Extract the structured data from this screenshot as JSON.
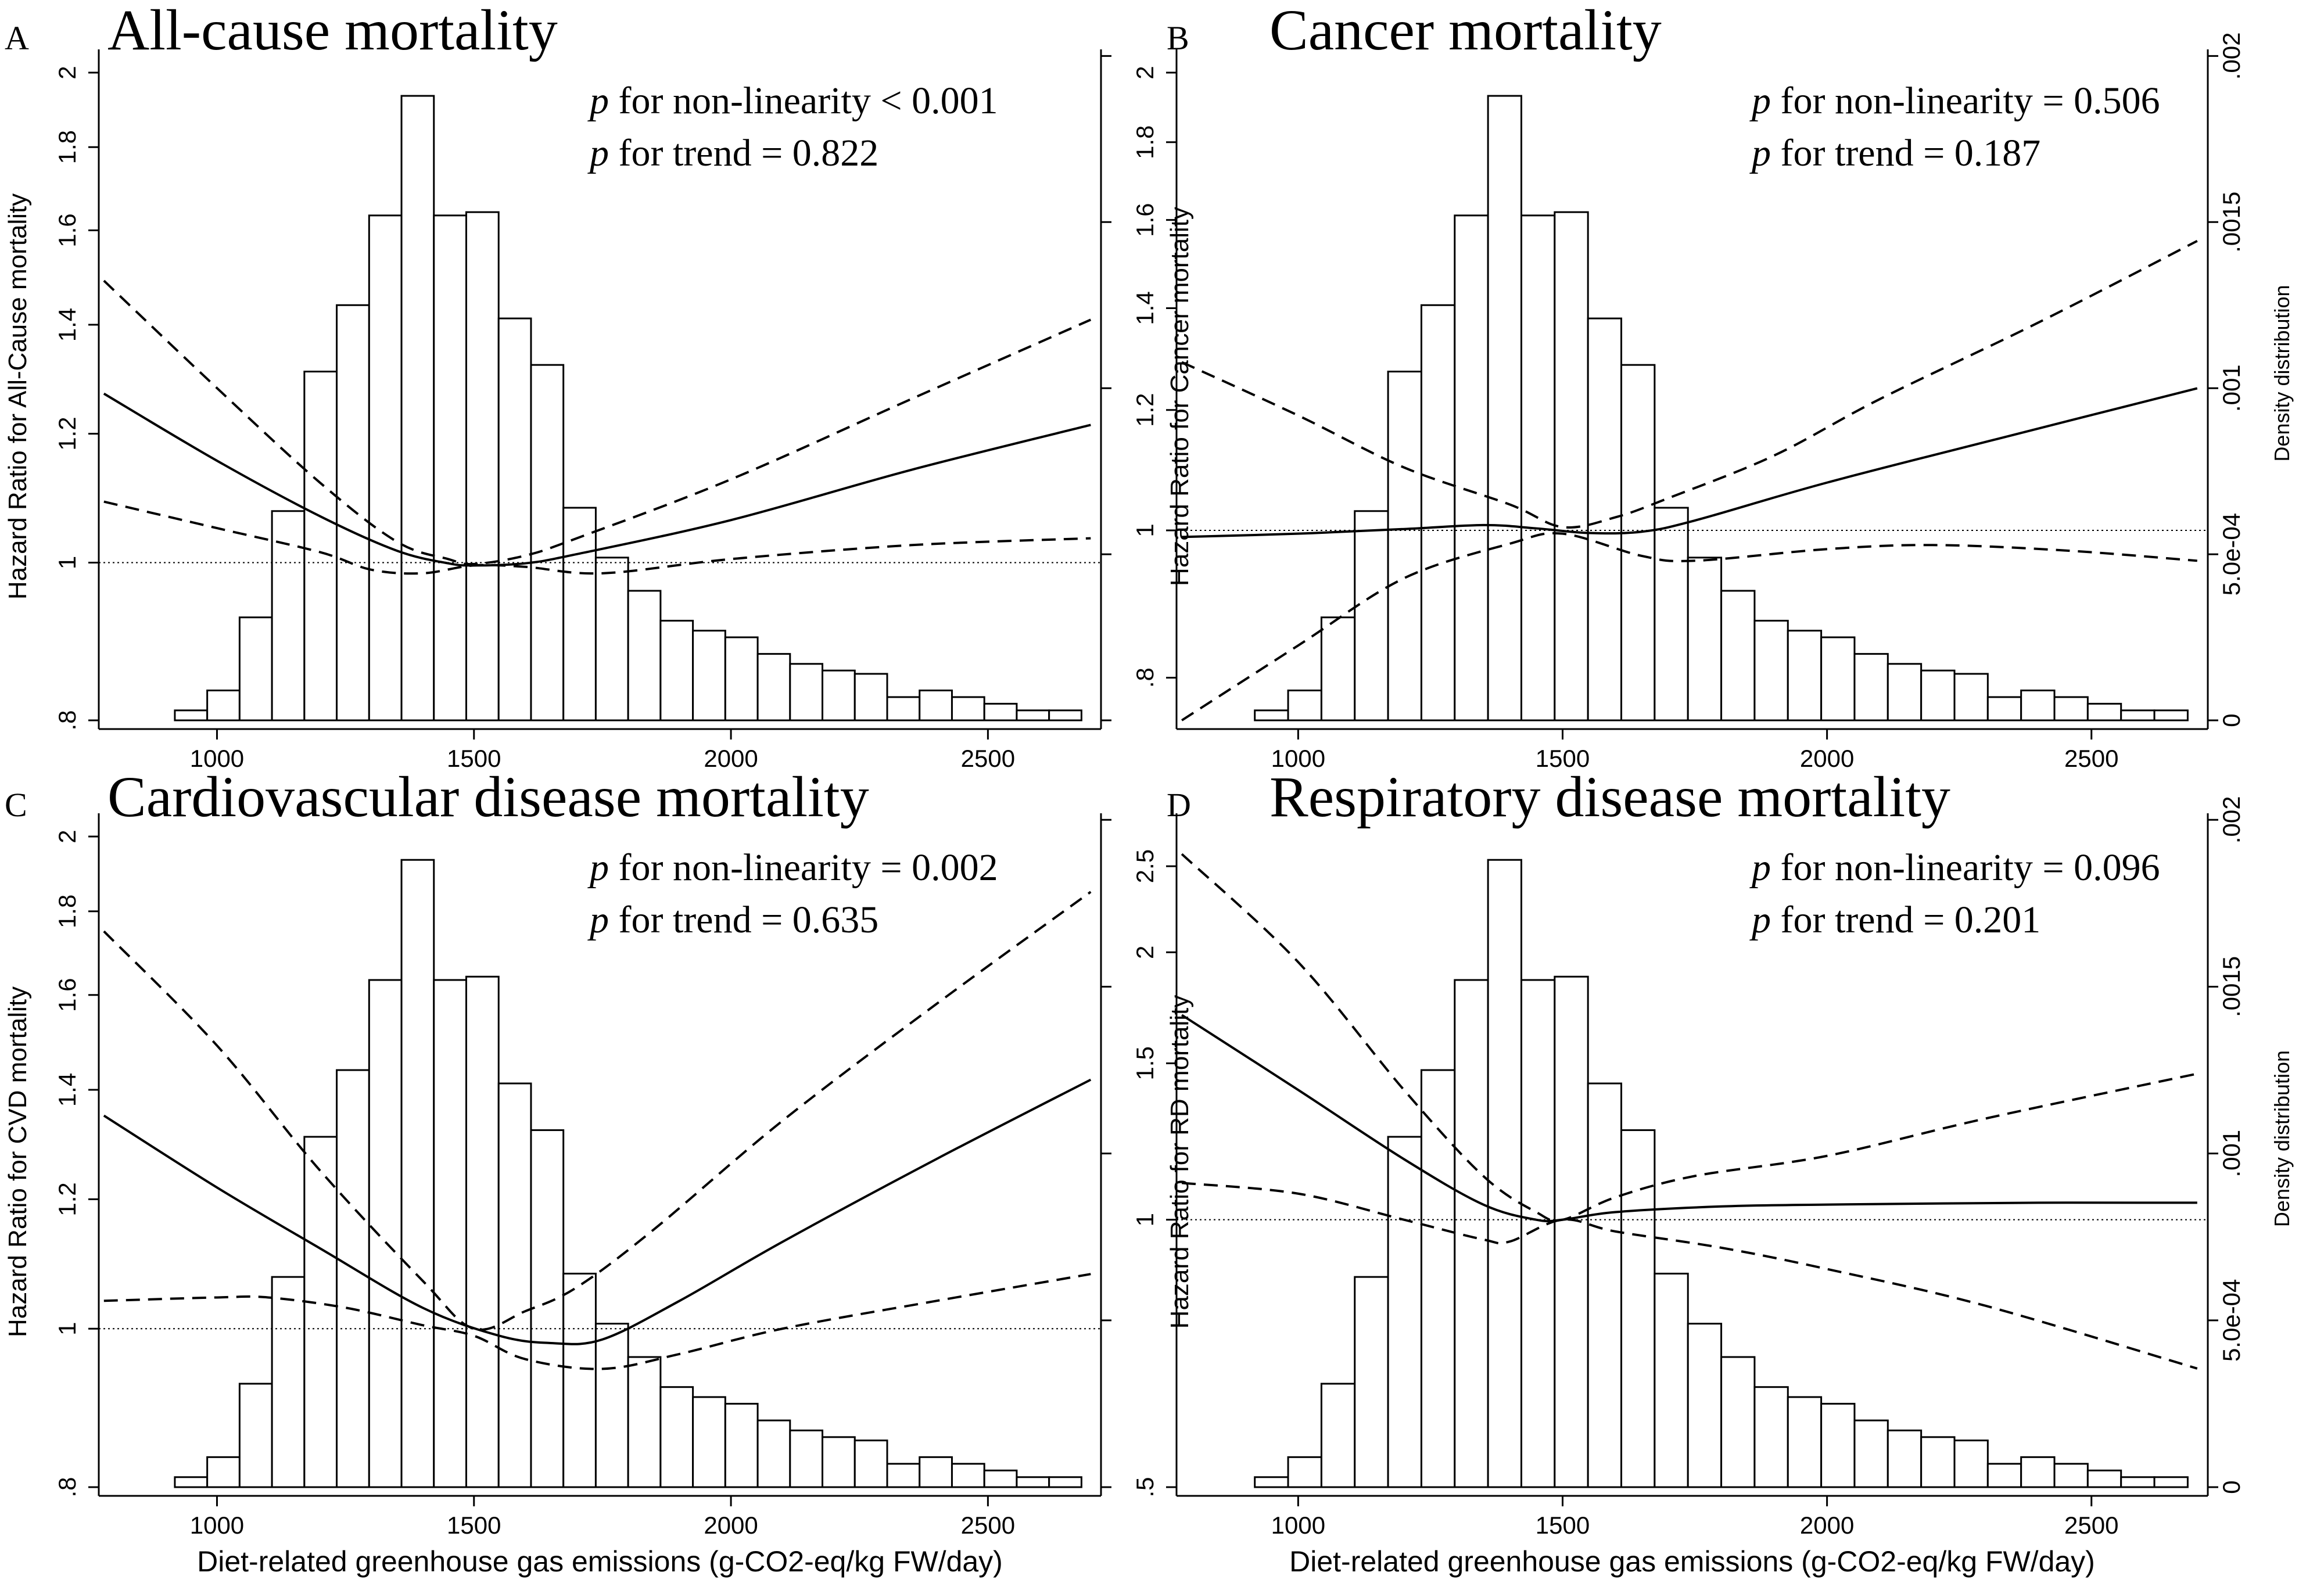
{
  "chart_data": [
    {
      "type": "line",
      "panel_label": "A",
      "title": "All-cause mortality",
      "ylabel": "Hazard Ratio for All-Cause mortality",
      "y2label": "",
      "xlabel": "",
      "annotation_p": "p",
      "annotation_nonlin": " for non-linearity < 0.001",
      "annotation_trend": " for trend = 0.822",
      "xlim": [
        770,
        2720
      ],
      "ylim": [
        0.8,
        2.0
      ],
      "ylog": true,
      "yticks": [
        0.8,
        1,
        1.2,
        1.4,
        1.6,
        1.8,
        2
      ],
      "ytick_labels": [
        ".8",
        "1",
        "1.2",
        "1.4",
        "1.6",
        "1.8",
        "2"
      ],
      "xticks": [
        1000,
        1500,
        2000,
        2500
      ],
      "xtick_labels": [
        "1000",
        "1500",
        "2000",
        "2500"
      ],
      "density_ticks": [
        0,
        0.0005,
        0.001,
        0.0015,
        0.002
      ],
      "density_tick_labels": [
        "",
        "",
        "",
        "",
        ""
      ],
      "reference_hr": 1,
      "series": [
        {
          "name": "HR",
          "style": "solid",
          "x": [
            780,
            1000,
            1200,
            1350,
            1450,
            1500,
            1600,
            1700,
            2000,
            2350,
            2700
          ],
          "y": [
            1.27,
            1.155,
            1.068,
            1.017,
            0.999,
            0.996,
            0.999,
            1.012,
            1.062,
            1.14,
            1.215
          ]
        },
        {
          "name": "Upper 95% CI",
          "style": "dashed",
          "x": [
            780,
            1000,
            1200,
            1350,
            1450,
            1500,
            1600,
            1700,
            2000,
            2350,
            2700
          ],
          "y": [
            1.49,
            1.28,
            1.12,
            1.03,
            1.005,
            0.998,
            1.01,
            1.035,
            1.125,
            1.26,
            1.41
          ]
        },
        {
          "name": "Lower 95% CI",
          "style": "dashed",
          "x": [
            780,
            1000,
            1200,
            1300,
            1400,
            1500,
            1600,
            1750,
            2000,
            2350,
            2700
          ],
          "y": [
            1.09,
            1.05,
            1.015,
            0.99,
            0.985,
            0.996,
            0.994,
            0.985,
            1.005,
            1.025,
            1.035
          ]
        }
      ],
      "histogram": {
        "bin_start": 855,
        "bin_width": 63,
        "density": [
          0.0,
          3e-05,
          9e-05,
          0.00031,
          0.00063,
          0.00105,
          0.00125,
          0.00152,
          0.00188,
          0.00152,
          0.00153,
          0.00121,
          0.00107,
          0.00064,
          0.00049,
          0.00039,
          0.0003,
          0.00027,
          0.00025,
          0.0002,
          0.00017,
          0.00015,
          0.00014,
          7e-05,
          9e-05,
          7e-05,
          5e-05,
          3e-05,
          3e-05
        ],
        "ymax": 0.00195
      }
    },
    {
      "type": "line",
      "panel_label": "B",
      "title": "Cancer mortality",
      "ylabel": "Hazard Ratio for Cancer mortality",
      "y2label": "Density distribution",
      "xlabel": "",
      "annotation_p": "p",
      "annotation_nonlin": " for non-linearity = 0.506",
      "annotation_trend": " for trend = 0.187",
      "xlim": [
        770,
        2720
      ],
      "ylim": [
        0.75,
        2.0
      ],
      "ylog": true,
      "yticks": [
        0.8,
        1,
        1.2,
        1.4,
        1.6,
        1.8,
        2
      ],
      "ytick_labels": [
        ".8",
        "1",
        "1.2",
        "1.4",
        "1.6",
        "1.8",
        "2"
      ],
      "xticks": [
        1000,
        1500,
        2000,
        2500
      ],
      "xtick_labels": [
        "1000",
        "1500",
        "2000",
        "2500"
      ],
      "density_ticks": [
        0,
        0.0005,
        0.001,
        0.0015,
        0.002
      ],
      "density_tick_labels": [
        "0",
        "5.0e-04",
        ".001",
        ".0015",
        ".002"
      ],
      "reference_hr": 1,
      "series": [
        {
          "name": "HR",
          "style": "solid",
          "x": [
            780,
            1000,
            1200,
            1350,
            1450,
            1550,
            1650,
            1750,
            2000,
            2350,
            2700
          ],
          "y": [
            0.99,
            0.995,
            1.002,
            1.008,
            1.003,
            0.996,
            0.998,
            1.015,
            1.075,
            1.155,
            1.24
          ]
        },
        {
          "name": "Upper 95% CI",
          "style": "dashed",
          "x": [
            780,
            1000,
            1200,
            1400,
            1500,
            1600,
            1700,
            1900,
            2100,
            2400,
            2700
          ],
          "y": [
            1.29,
            1.19,
            1.1,
            1.04,
            1.005,
            1.02,
            1.05,
            1.12,
            1.22,
            1.37,
            1.55
          ]
        },
        {
          "name": "Lower 95% CI",
          "style": "dashed",
          "x": [
            780,
            1000,
            1200,
            1400,
            1500,
            1650,
            1750,
            2000,
            2200,
            2450,
            2700
          ],
          "y": [
            0.75,
            0.84,
            0.93,
            0.98,
            0.995,
            0.962,
            0.955,
            0.972,
            0.978,
            0.97,
            0.955
          ]
        }
      ],
      "histogram": {
        "bin_start": 855,
        "bin_width": 63,
        "density": [
          0.0,
          3e-05,
          9e-05,
          0.00031,
          0.00063,
          0.00105,
          0.00125,
          0.00152,
          0.00188,
          0.00152,
          0.00153,
          0.00121,
          0.00107,
          0.00064,
          0.00049,
          0.00039,
          0.0003,
          0.00027,
          0.00025,
          0.0002,
          0.00017,
          0.00015,
          0.00014,
          7e-05,
          9e-05,
          7e-05,
          5e-05,
          3e-05,
          3e-05
        ],
        "ymax": 0.00195
      }
    },
    {
      "type": "line",
      "panel_label": "C",
      "title": "Cardiovascular disease mortality",
      "ylabel": "Hazard Ratio for CVD mortality",
      "y2label": "",
      "xlabel": "Diet-related greenhouse gas emissions (g-CO2-eq/kg FW/day)",
      "annotation_p": "p",
      "annotation_nonlin": " for non-linearity = 0.002",
      "annotation_trend": " for trend = 0.635",
      "xlim": [
        770,
        2720
      ],
      "ylim": [
        0.8,
        2.0
      ],
      "ylog": true,
      "yticks": [
        0.8,
        1,
        1.2,
        1.4,
        1.6,
        1.8,
        2
      ],
      "ytick_labels": [
        ".8",
        "1",
        "1.2",
        "1.4",
        "1.6",
        "1.8",
        "2"
      ],
      "xticks": [
        1000,
        1500,
        2000,
        2500
      ],
      "xtick_labels": [
        "1000",
        "1500",
        "2000",
        "2500"
      ],
      "density_ticks": [
        0,
        0.0005,
        0.001,
        0.0015,
        0.002
      ],
      "density_tick_labels": [
        "",
        "",
        "",
        "",
        ""
      ],
      "reference_hr": 1,
      "series": [
        {
          "name": "HR",
          "style": "solid",
          "x": [
            780,
            1000,
            1200,
            1400,
            1550,
            1650,
            1750,
            1900,
            2100,
            2400,
            2700
          ],
          "y": [
            1.35,
            1.22,
            1.12,
            1.03,
            0.99,
            0.98,
            0.985,
            1.04,
            1.13,
            1.27,
            1.42
          ]
        },
        {
          "name": "Upper 95% CI",
          "style": "dashed",
          "x": [
            780,
            1000,
            1200,
            1400,
            1500,
            1600,
            1700,
            1850,
            2100,
            2400,
            2700
          ],
          "y": [
            1.75,
            1.49,
            1.25,
            1.07,
            1.0,
            1.025,
            1.06,
            1.15,
            1.34,
            1.58,
            1.85
          ]
        },
        {
          "name": "Lower 95% CI",
          "style": "dashed",
          "x": [
            780,
            1000,
            1100,
            1250,
            1400,
            1500,
            1600,
            1750,
            1900,
            2100,
            2400,
            2700
          ],
          "y": [
            1.04,
            1.045,
            1.045,
            1.03,
            1.005,
            0.99,
            0.958,
            0.945,
            0.965,
            1.0,
            1.04,
            1.08
          ]
        }
      ],
      "histogram": {
        "bin_start": 855,
        "bin_width": 63,
        "density": [
          0.0,
          3e-05,
          9e-05,
          0.00031,
          0.00063,
          0.00105,
          0.00125,
          0.00152,
          0.00188,
          0.00152,
          0.00153,
          0.00121,
          0.00107,
          0.00064,
          0.00049,
          0.00039,
          0.0003,
          0.00027,
          0.00025,
          0.0002,
          0.00017,
          0.00015,
          0.00014,
          7e-05,
          9e-05,
          7e-05,
          5e-05,
          3e-05,
          3e-05
        ],
        "ymax": 0.00195
      }
    },
    {
      "type": "line",
      "panel_label": "D",
      "title": "Respiratory disease mortality",
      "ylabel": "Hazard Ratio for RD mortality",
      "y2label": "Density distribution",
      "xlabel": "Diet-related greenhouse gas emissions (g-CO2-eq/kg FW/day)",
      "annotation_p": "p",
      "annotation_nonlin": " for non-linearity = 0.096",
      "annotation_trend": " for trend = 0.201",
      "xlim": [
        770,
        2720
      ],
      "ylim": [
        0.5,
        2.7
      ],
      "ylog": true,
      "yticks": [
        0.5,
        1,
        1.5,
        2,
        2.5
      ],
      "ytick_labels": [
        ".5",
        "1",
        "1.5",
        "2",
        "2.5"
      ],
      "xticks": [
        1000,
        1500,
        2000,
        2500
      ],
      "xtick_labels": [
        "1000",
        "1500",
        "2000",
        "2500"
      ],
      "density_ticks": [
        0,
        0.0005,
        0.001,
        0.0015,
        0.002
      ],
      "density_tick_labels": [
        "0",
        "5.0e-04",
        ".001",
        ".0015",
        ".002"
      ],
      "reference_hr": 1,
      "series": [
        {
          "name": "HR",
          "style": "solid",
          "x": [
            780,
            1000,
            1200,
            1350,
            1450,
            1500,
            1600,
            1800,
            2000,
            2400,
            2700
          ],
          "y": [
            1.7,
            1.4,
            1.17,
            1.04,
            1.0,
            1.0,
            1.02,
            1.035,
            1.04,
            1.045,
            1.045
          ]
        },
        {
          "name": "Upper 95% CI",
          "style": "dashed",
          "x": [
            780,
            1000,
            1200,
            1350,
            1450,
            1500,
            1600,
            1750,
            2000,
            2300,
            2700
          ],
          "y": [
            2.58,
            1.95,
            1.4,
            1.12,
            1.02,
            1.0,
            1.06,
            1.12,
            1.18,
            1.3,
            1.46
          ]
        },
        {
          "name": "Lower 95% CI",
          "style": "dashed",
          "x": [
            780,
            1000,
            1200,
            1350,
            1400,
            1500,
            1600,
            1800,
            2000,
            2300,
            2700
          ],
          "y": [
            1.1,
            1.07,
            1.0,
            0.95,
            0.945,
            1.0,
            0.97,
            0.93,
            0.88,
            0.8,
            0.68
          ]
        }
      ],
      "histogram": {
        "bin_start": 855,
        "bin_width": 63,
        "density": [
          0.0,
          3e-05,
          9e-05,
          0.00031,
          0.00063,
          0.00105,
          0.00125,
          0.00152,
          0.00188,
          0.00152,
          0.00153,
          0.00121,
          0.00107,
          0.00064,
          0.00049,
          0.00039,
          0.0003,
          0.00027,
          0.00025,
          0.0002,
          0.00017,
          0.00015,
          0.00014,
          7e-05,
          9e-05,
          7e-05,
          5e-05,
          3e-05,
          3e-05
        ],
        "ymax": 0.00195
      }
    }
  ]
}
